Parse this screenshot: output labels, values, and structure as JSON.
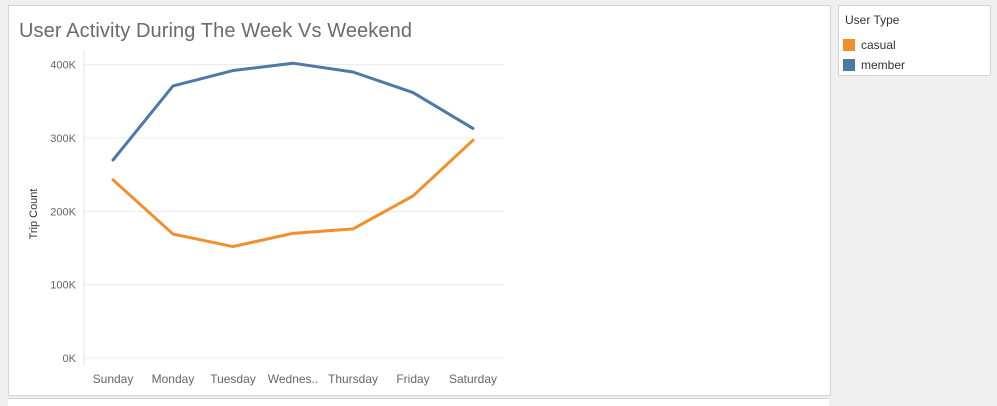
{
  "title": "User Activity During The Week Vs Weekend",
  "legend": {
    "title": "User Type",
    "items": [
      {
        "label": "casual",
        "color": "#f28e2b"
      },
      {
        "label": "member",
        "color": "#4e79a7"
      }
    ]
  },
  "chart_data": {
    "type": "line",
    "title": "User Activity During The Week Vs Weekend",
    "xlabel": "",
    "ylabel": "Trip Count",
    "categories": [
      "Sunday",
      "Monday",
      "Tuesday",
      "Wednes..",
      "Thursday",
      "Friday",
      "Saturday"
    ],
    "ylim": [
      0,
      420000
    ],
    "yticks": [
      0,
      100000,
      200000,
      300000,
      400000
    ],
    "ytick_labels": [
      "0K",
      "100K",
      "200K",
      "300K",
      "400K"
    ],
    "grid": true,
    "legend_position": "top-right",
    "series": [
      {
        "name": "casual",
        "color": "#f28e2b",
        "values": [
          243000,
          169000,
          152000,
          170000,
          176000,
          221000,
          297000
        ]
      },
      {
        "name": "member",
        "color": "#4e79a7",
        "values": [
          270000,
          371000,
          392000,
          402000,
          390000,
          362000,
          313000
        ]
      }
    ]
  }
}
